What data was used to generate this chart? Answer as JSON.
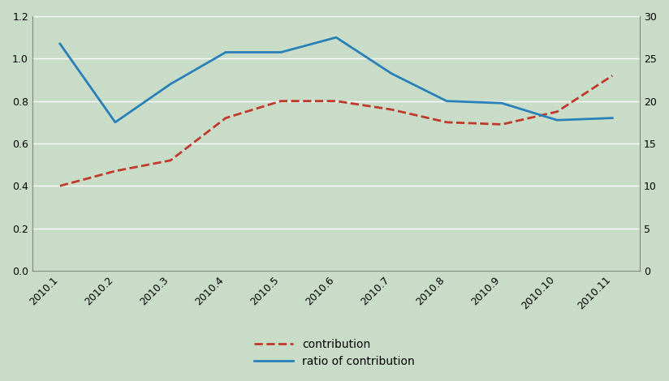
{
  "categories": [
    "2010.1",
    "2010.2",
    "2010.3",
    "2010.4",
    "2010.5",
    "2010.6",
    "2010.7",
    "2010.8",
    "2010.9",
    "2010.10",
    "2010.11"
  ],
  "contribution": [
    0.4,
    0.47,
    0.52,
    0.72,
    0.8,
    0.8,
    0.76,
    0.7,
    0.69,
    0.75,
    0.92
  ],
  "ratio_of_contribution": [
    1.07,
    0.7,
    0.88,
    1.03,
    1.03,
    1.1,
    0.93,
    0.8,
    0.79,
    0.71,
    0.72
  ],
  "contribution_color": "#c0392b",
  "ratio_color": "#2980b9",
  "background_color": "#c8dcc8",
  "left_ylim": [
    0.0,
    1.2
  ],
  "right_ylim": [
    0,
    30
  ],
  "left_yticks": [
    0.0,
    0.2,
    0.4,
    0.6,
    0.8,
    1.0,
    1.2
  ],
  "right_yticks": [
    0,
    5,
    10,
    15,
    20,
    25,
    30
  ],
  "legend_contribution": "contribution",
  "legend_ratio": "ratio of contribution",
  "grid_color": "#ffffff"
}
